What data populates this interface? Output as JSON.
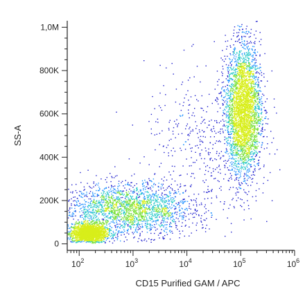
{
  "chart_data": {
    "type": "scatter",
    "style": "flow cytometry density dot plot",
    "xlabel": "CD15 Purified GAM / APC",
    "ylabel": "SS-A",
    "x_scale": "log",
    "y_scale": "linear",
    "xlim": [
      60,
      1000000
    ],
    "ylim": [
      -30000,
      1030000
    ],
    "x_ticks": [
      {
        "value": 100,
        "base": "10",
        "exp": "2"
      },
      {
        "value": 1000,
        "base": "10",
        "exp": "3"
      },
      {
        "value": 10000,
        "base": "10",
        "exp": "4"
      },
      {
        "value": 100000,
        "base": "10",
        "exp": "5"
      },
      {
        "value": 1000000,
        "base": "10",
        "exp": "6"
      }
    ],
    "y_ticks": [
      {
        "value": 0,
        "label": "0"
      },
      {
        "value": 200000,
        "label": "200K"
      },
      {
        "value": 400000,
        "label": "400K"
      },
      {
        "value": 600000,
        "label": "600K"
      },
      {
        "value": 800000,
        "label": "800K"
      },
      {
        "value": 1000000,
        "label": "1,0M"
      }
    ],
    "grid": false,
    "legend": "none",
    "density_colors": [
      "#1a1acc",
      "#1e90ff",
      "#27c9c9",
      "#7be03a",
      "#d8ee1a"
    ],
    "populations": [
      {
        "x_center": 150,
        "y_center": 50000,
        "x_log_sd": 0.16,
        "y_sd": 22000,
        "density": "highest"
      },
      {
        "x_center": 800,
        "y_center": 160000,
        "x_log_sd": 0.6,
        "y_sd": 60000,
        "density": "medium"
      },
      {
        "x_center": 110000,
        "y_center": 620000,
        "x_log_sd": 0.16,
        "y_sd": 150000,
        "density": "high"
      },
      {
        "x_center": 20000,
        "y_center": 450000,
        "x_log_sd": 0.55,
        "y_sd": 180000,
        "density": "sparse"
      }
    ]
  }
}
